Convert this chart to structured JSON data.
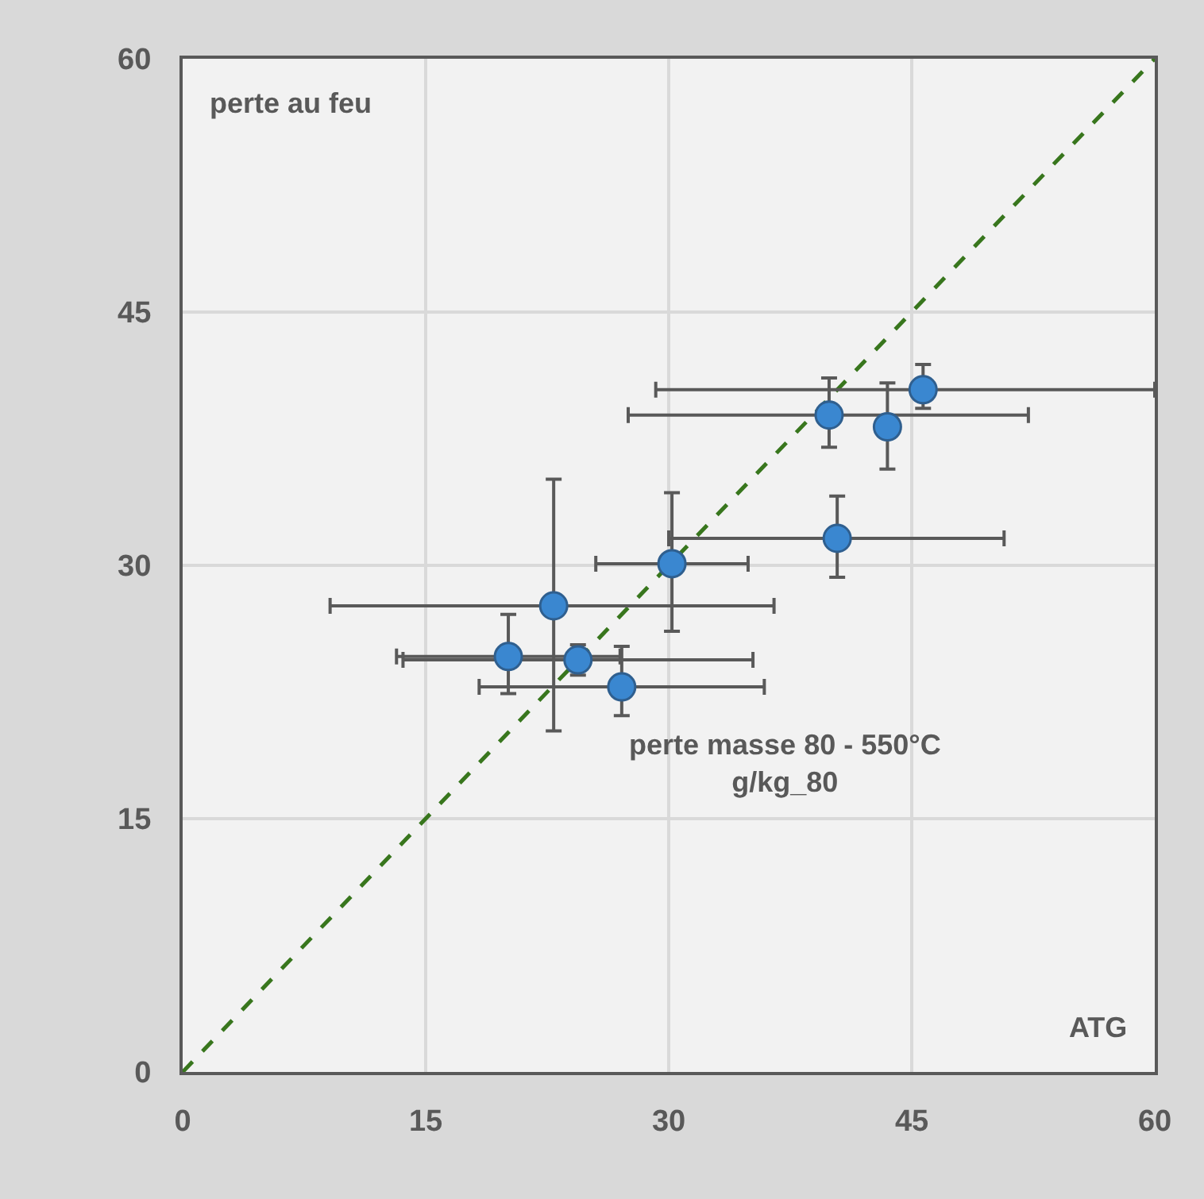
{
  "chart_data": {
    "type": "scatter",
    "xlabel": "ATG",
    "ylabel": "perte au feu",
    "annotations": [
      "perte masse 80 - 550°C\ng/kg_80"
    ],
    "xlim": [
      0,
      60
    ],
    "ylim": [
      0,
      60
    ],
    "xticks": [
      0,
      15,
      30,
      45,
      60
    ],
    "yticks": [
      0,
      15,
      30,
      45,
      60
    ],
    "grid": true,
    "series": [
      {
        "type": "scatter",
        "color": "#3a87d0",
        "marker": "circle",
        "x": [
          20.1,
          24.4,
          22.9,
          27.1,
          30.2,
          40.4,
          39.9,
          43.5,
          45.7
        ],
        "values": [
          24.6,
          24.4,
          27.6,
          22.8,
          30.1,
          31.6,
          38.9,
          38.2,
          40.4
        ],
        "errors": [
          [
            22.4,
            27.1
          ],
          [
            23.5,
            25.3
          ],
          [
            20.2,
            35.1
          ],
          [
            21.1,
            25.2
          ],
          [
            26.1,
            34.3
          ],
          [
            29.3,
            34.1
          ],
          [
            37.0,
            41.1
          ],
          [
            35.7,
            40.8
          ],
          [
            39.3,
            41.9
          ]
        ],
        "xerrors": [
          [
            13.2,
            27.0
          ],
          [
            13.6,
            35.2
          ],
          [
            9.1,
            36.5
          ],
          [
            18.3,
            35.9
          ],
          [
            25.5,
            34.9
          ],
          [
            30.0,
            50.7
          ],
          [
            27.5,
            52.2
          ],
          null,
          [
            29.2,
            60
          ]
        ]
      },
      {
        "type": "line",
        "color": "#38761d",
        "line_style": "dashed",
        "marker": "none",
        "x": [
          0,
          60
        ],
        "values": [
          0,
          60
        ]
      }
    ]
  }
}
